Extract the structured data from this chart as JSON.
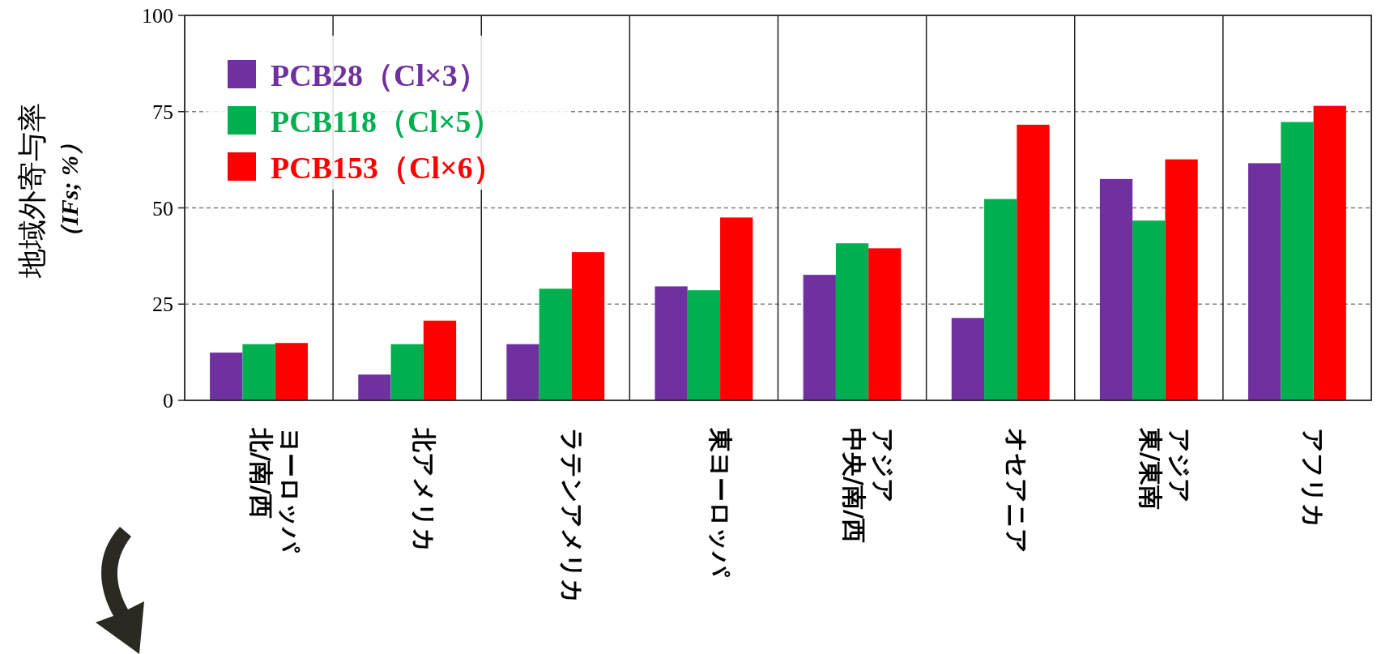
{
  "chart_data": {
    "type": "bar",
    "ylabel": "地域外寄与率（IFs; %）",
    "categories": [
      "北/南/西ヨーロッパ",
      "北アメリカ",
      "ラテンアメリカ",
      "東ヨーロッパ",
      "中央/南/西アジア",
      "オセアニア",
      "東/東南アジア",
      "アフリカ"
    ],
    "series": [
      {
        "name": "PCB28（Cl×3）",
        "color": "#7030a0",
        "values": [
          12.4,
          6.7,
          14.6,
          29.6,
          32.6,
          21.4,
          57.5,
          61.6
        ]
      },
      {
        "name": "PCB118（Cl×5）",
        "color": "#00b050",
        "values": [
          14.6,
          14.6,
          29.0,
          28.6,
          40.8,
          52.3,
          46.7,
          72.3
        ]
      },
      {
        "name": "PCB153（Cl×6）",
        "color": "#ff0000",
        "values": [
          14.9,
          20.7,
          38.5,
          47.5,
          39.5,
          71.6,
          62.6,
          76.5
        ]
      }
    ],
    "ylim": [
      0,
      100
    ],
    "yticks": [
      0,
      25,
      50,
      75,
      100
    ],
    "grid": "y",
    "legend": "top left"
  }
}
